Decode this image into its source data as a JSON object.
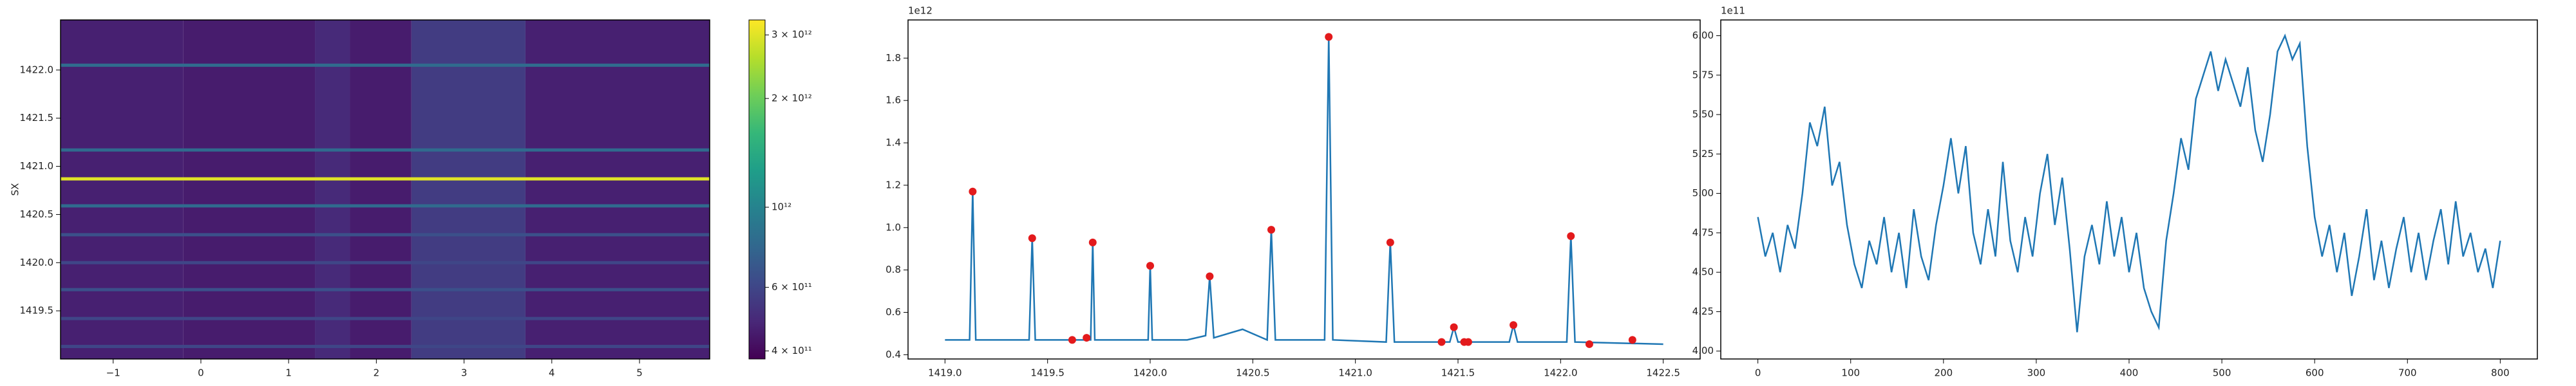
{
  "chart_data": [
    {
      "type": "heatmap",
      "ylabel": "SX",
      "colormap": "viridis",
      "scale": "log",
      "xlim": [
        -1.6,
        5.8
      ],
      "ylim": [
        1419.0,
        1422.52
      ],
      "xticks": [
        {
          "value": -1,
          "label": "−1"
        },
        0,
        1,
        2,
        3,
        4,
        5
      ],
      "yticks": [
        {
          "value": 1419.5,
          "label": "1419.5"
        },
        {
          "value": 1420.0,
          "label": "1420.0"
        },
        {
          "value": 1420.5,
          "label": "1420.5"
        },
        {
          "value": 1421.0,
          "label": "1421.0"
        },
        {
          "value": 1421.5,
          "label": "1421.5"
        },
        {
          "value": 1422.0,
          "label": "1422.0"
        }
      ],
      "column_edges": [
        -1.6,
        -0.2,
        1.3,
        1.7,
        2.4,
        3.7,
        5.8
      ],
      "column_values": [
        460000000000,
        450000000000,
        490000000000,
        450000000000,
        560000000000,
        460000000000
      ],
      "line_y": [
        1419.13,
        1419.42,
        1419.72,
        1420.0,
        1420.29,
        1420.59,
        1420.87,
        1421.17,
        1422.05
      ],
      "line_values": [
        600000000000,
        600000000000,
        650000000000,
        600000000000,
        650000000000,
        800000000000,
        3000000000000,
        800000000000,
        800000000000
      ],
      "clim": [
        380000000000,
        3300000000000
      ],
      "cticks": [
        {
          "value": 400000000000,
          "label": "4 × 10¹¹"
        },
        {
          "value": 600000000000,
          "label": "6 × 10¹¹"
        },
        {
          "value": 1000000000000,
          "label": "10¹²"
        },
        {
          "value": 2000000000000,
          "label": "2 × 10¹²"
        },
        {
          "value": 3000000000000,
          "label": "3 × 10¹²"
        }
      ]
    },
    {
      "type": "line",
      "offset_label": "1e12",
      "color": "#1f77b4",
      "xlim": [
        1418.82,
        1422.68
      ],
      "ylim": [
        0.38,
        1.98
      ],
      "xticks": [
        {
          "value": 1419.0,
          "label": "1419.0"
        },
        1419.5,
        {
          "value": 1420.0,
          "label": "1420.0"
        },
        1420.5,
        {
          "value": 1421.0,
          "label": "1421.0"
        },
        1421.5,
        {
          "value": 1422.0,
          "label": "1422.0"
        },
        1422.5
      ],
      "yticks": [
        0.4,
        0.6,
        0.8,
        {
          "value": 1.0,
          "label": "1.0"
        },
        1.2,
        1.4,
        1.6,
        1.8
      ],
      "x": [
        1419.0,
        1419.12,
        1419.135,
        1419.15,
        1419.41,
        1419.425,
        1419.44,
        1419.71,
        1419.72,
        1419.73,
        1419.99,
        1420.0,
        1420.01,
        1420.18,
        1420.27,
        1420.29,
        1420.31,
        1420.45,
        1420.57,
        1420.59,
        1420.61,
        1420.85,
        1420.87,
        1420.89,
        1421.15,
        1421.17,
        1421.19,
        1421.46,
        1421.48,
        1421.5,
        1421.75,
        1421.77,
        1421.79,
        1422.03,
        1422.05,
        1422.07,
        1422.5
      ],
      "values": [
        0.47,
        0.47,
        1.17,
        0.47,
        0.47,
        0.95,
        0.47,
        0.47,
        0.93,
        0.47,
        0.47,
        0.82,
        0.47,
        0.47,
        0.49,
        0.77,
        0.48,
        0.52,
        0.47,
        0.99,
        0.47,
        0.47,
        1.9,
        0.47,
        0.46,
        0.93,
        0.46,
        0.46,
        0.53,
        0.46,
        0.46,
        0.54,
        0.46,
        0.46,
        0.96,
        0.46,
        0.45
      ],
      "marker_color": "#e31a1c",
      "marker_x": [
        1419.135,
        1419.425,
        1419.62,
        1419.69,
        1419.72,
        1420.0,
        1420.29,
        1420.59,
        1420.87,
        1421.17,
        1421.42,
        1421.48,
        1421.53,
        1421.55,
        1421.77,
        1422.05,
        1422.14,
        1422.35
      ],
      "marker_values": [
        1.17,
        0.95,
        0.47,
        0.48,
        0.93,
        0.82,
        0.77,
        0.99,
        1.9,
        0.93,
        0.46,
        0.53,
        0.46,
        0.46,
        0.54,
        0.96,
        0.45,
        0.47
      ]
    },
    {
      "type": "line",
      "offset_label": "1e11",
      "color": "#1f77b4",
      "xlim": [
        -40,
        840
      ],
      "ylim": [
        3.95,
        6.1
      ],
      "xticks": [
        0,
        100,
        200,
        300,
        400,
        500,
        600,
        700,
        800
      ],
      "yticks": [
        {
          "value": 4.0,
          "label": "4.00"
        },
        4.25,
        {
          "value": 4.5,
          "label": "4.50"
        },
        4.75,
        {
          "value": 5.0,
          "label": "5.00"
        },
        5.25,
        {
          "value": 5.5,
          "label": "5.50"
        },
        5.75,
        {
          "value": 6.0,
          "label": "6.00"
        }
      ],
      "x": [
        0,
        8,
        16,
        24,
        32,
        40,
        48,
        56,
        64,
        72,
        80,
        88,
        96,
        104,
        112,
        120,
        128,
        136,
        144,
        152,
        160,
        168,
        176,
        184,
        192,
        200,
        208,
        216,
        224,
        232,
        240,
        248,
        256,
        264,
        272,
        280,
        288,
        296,
        304,
        312,
        320,
        328,
        336,
        344,
        352,
        360,
        368,
        376,
        384,
        392,
        400,
        408,
        416,
        424,
        432,
        440,
        448,
        456,
        464,
        472,
        480,
        488,
        496,
        504,
        512,
        520,
        528,
        536,
        544,
        552,
        560,
        568,
        576,
        584,
        592,
        600,
        608,
        616,
        624,
        632,
        640,
        648,
        656,
        664,
        672,
        680,
        688,
        696,
        704,
        712,
        720,
        728,
        736,
        744,
        752,
        760,
        768,
        776,
        784,
        792,
        800
      ],
      "values": [
        4.85,
        4.6,
        4.75,
        4.5,
        4.8,
        4.65,
        5.0,
        5.45,
        5.3,
        5.55,
        5.05,
        5.2,
        4.8,
        4.55,
        4.4,
        4.7,
        4.55,
        4.85,
        4.5,
        4.75,
        4.4,
        4.9,
        4.6,
        4.45,
        4.8,
        5.05,
        5.35,
        5.0,
        5.3,
        4.75,
        4.55,
        4.9,
        4.6,
        5.2,
        4.7,
        4.5,
        4.85,
        4.6,
        5.0,
        5.25,
        4.8,
        5.1,
        4.65,
        4.12,
        4.6,
        4.8,
        4.55,
        4.95,
        4.6,
        4.85,
        4.5,
        4.75,
        4.4,
        4.25,
        4.15,
        4.7,
        5.0,
        5.35,
        5.15,
        5.6,
        5.75,
        5.9,
        5.65,
        5.85,
        5.7,
        5.55,
        5.8,
        5.4,
        5.2,
        5.5,
        5.9,
        6.0,
        5.85,
        5.95,
        5.3,
        4.85,
        4.6,
        4.8,
        4.5,
        4.75,
        4.35,
        4.6,
        4.9,
        4.45,
        4.7,
        4.4,
        4.65,
        4.85,
        4.5,
        4.75,
        4.45,
        4.7,
        4.9,
        4.55,
        4.95,
        4.6,
        4.75,
        4.5,
        4.65,
        4.4,
        4.7
      ]
    }
  ]
}
